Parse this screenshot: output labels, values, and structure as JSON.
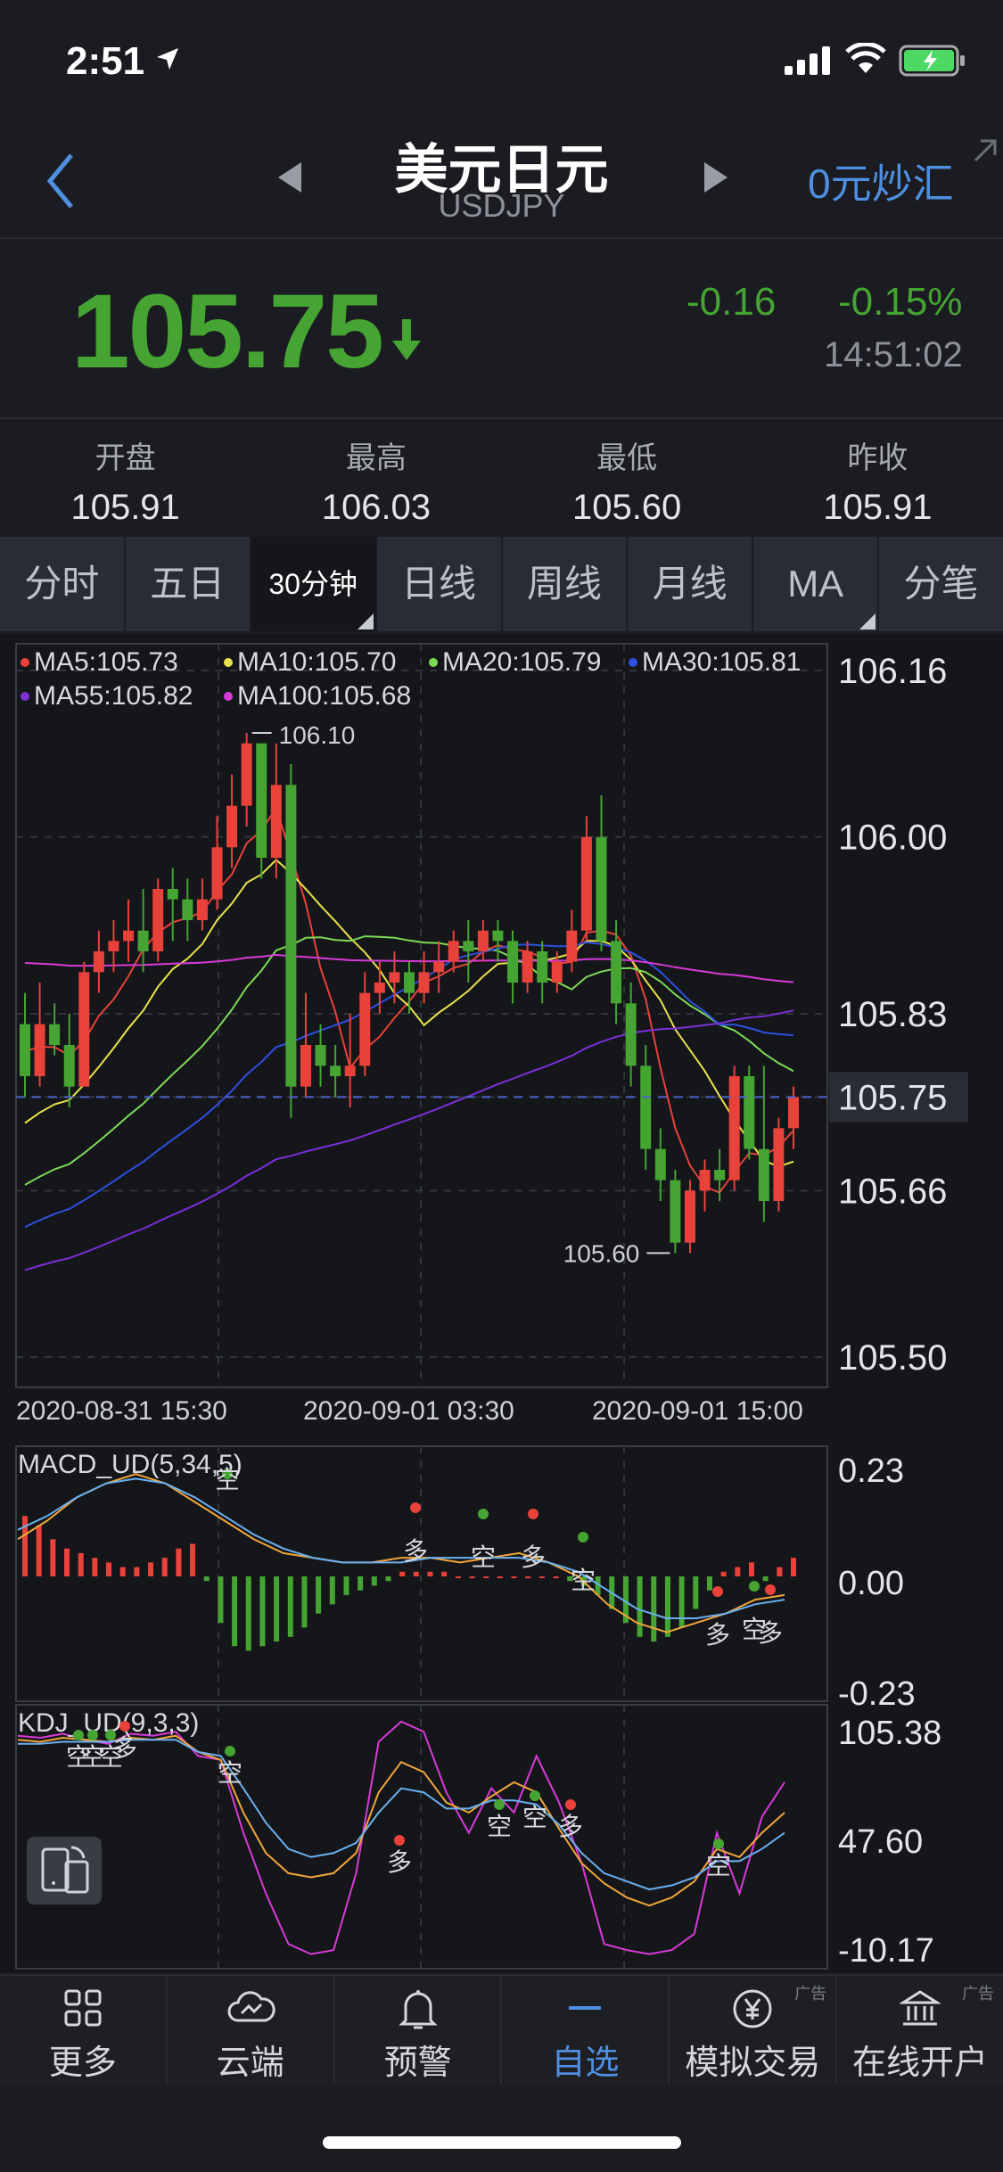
{
  "status_bar": {
    "time": "2:51"
  },
  "header": {
    "title": "美元日元",
    "subtitle": "USDJPY",
    "fx_link": "0元炒汇"
  },
  "quote": {
    "price": "105.75",
    "change": "-0.16",
    "change_pct": "-0.15%",
    "time": "14:51:02",
    "down_color": "#45a432"
  },
  "stats": [
    {
      "label": "开盘",
      "value": "105.91"
    },
    {
      "label": "最高",
      "value": "106.03"
    },
    {
      "label": "最低",
      "value": "105.60"
    },
    {
      "label": "昨收",
      "value": "105.91"
    }
  ],
  "tabs": [
    {
      "label": "分时",
      "active": false
    },
    {
      "label": "五日",
      "active": false
    },
    {
      "label": "30分钟",
      "active": true
    },
    {
      "label": "日线",
      "active": false
    },
    {
      "label": "周线",
      "active": false
    },
    {
      "label": "月线",
      "active": false
    },
    {
      "label": "MA",
      "active": false
    },
    {
      "label": "分笔",
      "active": false
    }
  ],
  "chart_data": [
    {
      "type": "candlestick",
      "name": "main",
      "ma_legend": [
        {
          "label": "MA5:105.73",
          "color": "#e8423a"
        },
        {
          "label": "MA10:105.70",
          "color": "#e8e24a"
        },
        {
          "label": "MA20:105.79",
          "color": "#7ed957"
        },
        {
          "label": "MA30:105.81",
          "color": "#2e4fe0"
        },
        {
          "label": "MA55:105.82",
          "color": "#7a2fd8"
        },
        {
          "label": "MA100:105.68",
          "color": "#d83ad8"
        }
      ],
      "y_ticks": [
        "106.16",
        "106.00",
        "105.83",
        "105.75",
        "105.66",
        "105.50"
      ],
      "ylim": [
        105.5,
        106.16
      ],
      "x_labels": [
        "2020-08-31 15:30",
        "2020-09-01 03:30",
        "2020-09-01 15:00"
      ],
      "high_label": "106.10",
      "low_label": "105.60",
      "current": 105.75,
      "candles": [
        [
          105.82,
          105.77,
          105.85,
          105.75
        ],
        [
          105.77,
          105.82,
          105.86,
          105.76
        ],
        [
          105.82,
          105.8,
          105.84,
          105.79
        ],
        [
          105.8,
          105.76,
          105.83,
          105.74
        ],
        [
          105.76,
          105.87,
          105.88,
          105.76
        ],
        [
          105.87,
          105.89,
          105.91,
          105.85
        ],
        [
          105.89,
          105.9,
          105.92,
          105.87
        ],
        [
          105.9,
          105.91,
          105.94,
          105.88
        ],
        [
          105.91,
          105.89,
          105.95,
          105.87
        ],
        [
          105.89,
          105.95,
          105.96,
          105.88
        ],
        [
          105.95,
          105.94,
          105.97,
          105.9
        ],
        [
          105.94,
          105.92,
          105.96,
          105.9
        ],
        [
          105.92,
          105.94,
          105.96,
          105.91
        ],
        [
          105.94,
          105.99,
          106.02,
          105.93
        ],
        [
          105.99,
          106.03,
          106.06,
          105.97
        ],
        [
          106.03,
          106.09,
          106.1,
          106.01
        ],
        [
          106.09,
          105.98,
          106.09,
          105.96
        ],
        [
          105.98,
          106.05,
          106.09,
          105.96
        ],
        [
          106.05,
          105.76,
          106.07,
          105.73
        ],
        [
          105.76,
          105.8,
          105.85,
          105.75
        ],
        [
          105.8,
          105.78,
          105.82,
          105.76
        ],
        [
          105.78,
          105.77,
          105.8,
          105.75
        ],
        [
          105.77,
          105.78,
          105.83,
          105.74
        ],
        [
          105.78,
          105.85,
          105.87,
          105.77
        ],
        [
          105.85,
          105.86,
          105.88,
          105.83
        ],
        [
          105.86,
          105.87,
          105.89,
          105.84
        ],
        [
          105.87,
          105.85,
          105.88,
          105.83
        ],
        [
          105.85,
          105.87,
          105.89,
          105.84
        ],
        [
          105.87,
          105.88,
          105.9,
          105.85
        ],
        [
          105.88,
          105.9,
          105.91,
          105.87
        ],
        [
          105.9,
          105.89,
          105.92,
          105.86
        ],
        [
          105.89,
          105.91,
          105.92,
          105.88
        ],
        [
          105.91,
          105.9,
          105.92,
          105.88
        ],
        [
          105.9,
          105.86,
          105.91,
          105.84
        ],
        [
          105.86,
          105.89,
          105.9,
          105.85
        ],
        [
          105.89,
          105.86,
          105.9,
          105.84
        ],
        [
          105.86,
          105.88,
          105.89,
          105.85
        ],
        [
          105.88,
          105.91,
          105.93,
          105.87
        ],
        [
          105.91,
          106.0,
          106.02,
          105.9
        ],
        [
          106.0,
          105.9,
          106.04,
          105.89
        ],
        [
          105.9,
          105.84,
          105.92,
          105.82
        ],
        [
          105.84,
          105.78,
          105.86,
          105.76
        ],
        [
          105.78,
          105.7,
          105.8,
          105.68
        ],
        [
          105.7,
          105.67,
          105.72,
          105.65
        ],
        [
          105.67,
          105.61,
          105.68,
          105.6
        ],
        [
          105.61,
          105.66,
          105.67,
          105.6
        ],
        [
          105.66,
          105.68,
          105.69,
          105.64
        ],
        [
          105.68,
          105.67,
          105.7,
          105.65
        ],
        [
          105.67,
          105.77,
          105.78,
          105.66
        ],
        [
          105.77,
          105.7,
          105.78,
          105.69
        ],
        [
          105.7,
          105.65,
          105.78,
          105.63
        ],
        [
          105.65,
          105.72,
          105.73,
          105.64
        ],
        [
          105.72,
          105.75,
          105.76,
          105.7
        ]
      ]
    },
    {
      "type": "bar",
      "name": "MACD_UD(5,34,5)",
      "y_ticks": [
        "0.23",
        "0.00",
        "-0.23"
      ],
      "ylim": [
        -0.23,
        0.23
      ],
      "signals": [
        "空",
        "多",
        "空",
        "多",
        "空",
        "多",
        "空",
        "多"
      ]
    },
    {
      "type": "line",
      "name": "KDJ_UD(9,3,3)",
      "y_ticks": [
        "105.38",
        "47.60",
        "-10.17"
      ],
      "ylim": [
        -10.17,
        105.38
      ],
      "signals": [
        "空",
        "空",
        "空",
        "多",
        "空",
        "多",
        "空",
        "空",
        "多",
        "空",
        "多"
      ]
    }
  ],
  "tabbar": [
    {
      "label": "更多",
      "icon": "grid-icon",
      "ad": ""
    },
    {
      "label": "云端",
      "icon": "cloud-icon",
      "ad": ""
    },
    {
      "label": "预警",
      "icon": "bell-icon",
      "ad": ""
    },
    {
      "label": "自选",
      "icon": "dash-icon",
      "ad": ""
    },
    {
      "label": "模拟交易",
      "icon": "yen-icon",
      "ad": "广告"
    },
    {
      "label": "在线开户",
      "icon": "bank-icon",
      "ad": "广告"
    }
  ]
}
